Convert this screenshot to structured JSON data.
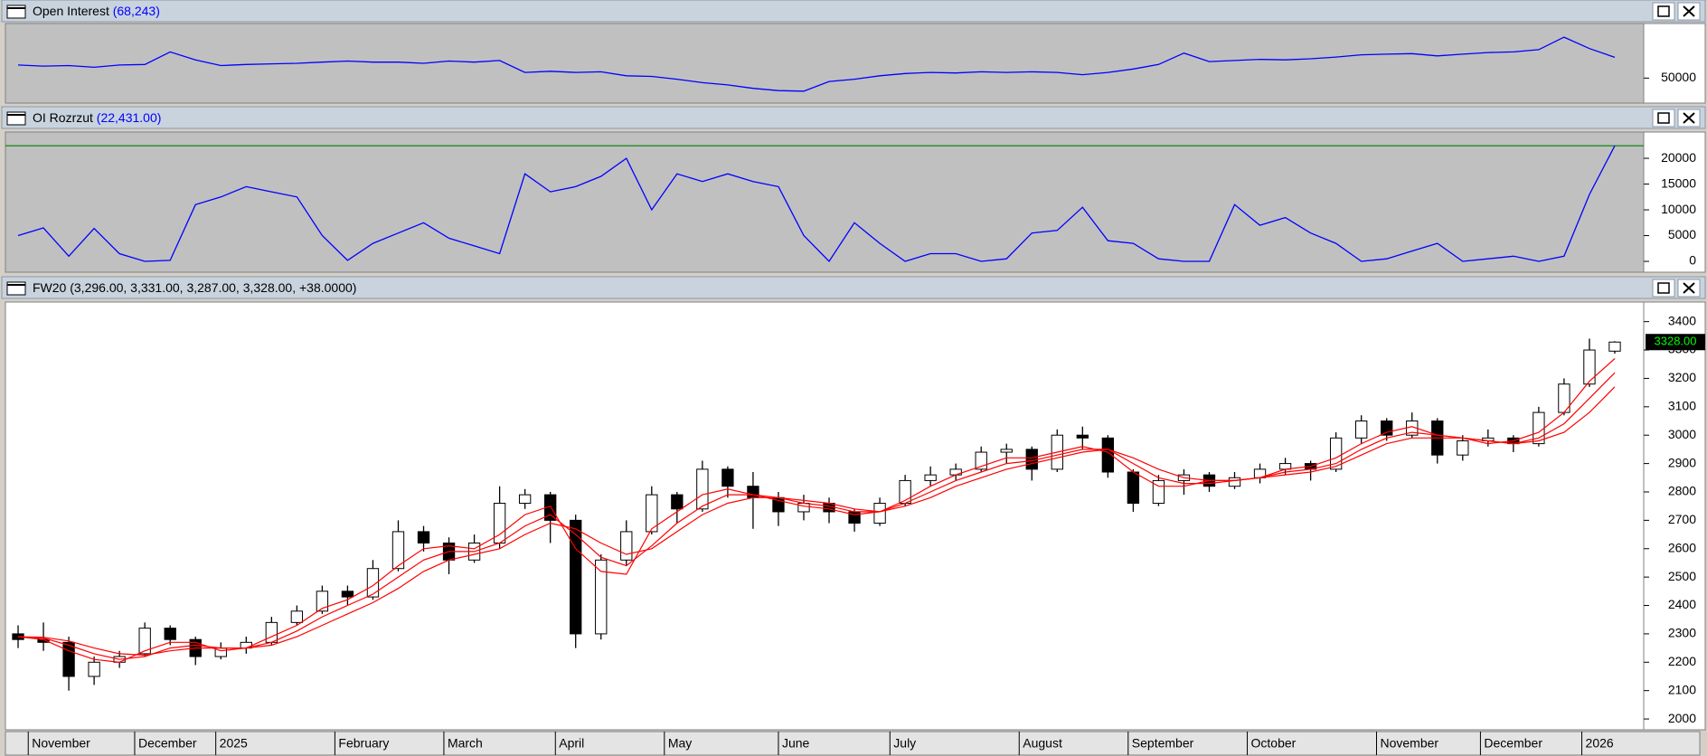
{
  "chart_data": [
    {
      "type": "line",
      "title": "Open Interest",
      "value_label": "(68,243)",
      "color": "#0000ff",
      "background": "#c0c0c0",
      "xlim": [
        0,
        64
      ],
      "ylim": [
        28000,
        98000
      ],
      "yticks": [
        50000
      ],
      "values": [
        61500,
        60500,
        61000,
        59500,
        61500,
        62000,
        73000,
        66000,
        61000,
        62000,
        62500,
        63000,
        64000,
        65000,
        64000,
        64000,
        63000,
        65000,
        64000,
        65500,
        55000,
        56000,
        55000,
        55500,
        52000,
        51500,
        49000,
        46000,
        44000,
        41000,
        39000,
        38500,
        47000,
        49000,
        52000,
        54000,
        55000,
        54500,
        55500,
        55000,
        55500,
        55000,
        53000,
        55000,
        58000,
        62000,
        72000,
        64500,
        65500,
        66500,
        66000,
        67000,
        68500,
        70500,
        71000,
        71500,
        69500,
        71000,
        72500,
        73000,
        75000,
        86000,
        76000,
        68243
      ]
    },
    {
      "type": "line",
      "title": "OI Rozrzut",
      "value_label": "(22,431.00)",
      "color": "#0000ff",
      "background": "#c0c0c0",
      "hline": {
        "value": 22431,
        "color": "#008000"
      },
      "xlim": [
        0,
        64
      ],
      "ylim": [
        -2100,
        25100
      ],
      "yticks": [
        0,
        5000,
        10000,
        15000,
        20000
      ],
      "values": [
        5000,
        6500,
        1000,
        6400,
        1500,
        0,
        200,
        11000,
        12500,
        14500,
        13500,
        12500,
        5000,
        200,
        3500,
        5500,
        7500,
        4500,
        3000,
        1500,
        17000,
        13500,
        14500,
        16500,
        20000,
        10000,
        17000,
        15500,
        17000,
        15500,
        14500,
        5000,
        0,
        7500,
        3500,
        0,
        1500,
        1500,
        0,
        500,
        5500,
        6000,
        10500,
        4000,
        3500,
        500,
        0,
        0,
        11000,
        7000,
        8500,
        5500,
        3500,
        0,
        500,
        2000,
        3500,
        0,
        500,
        1000,
        0,
        1000,
        13000,
        22431
      ]
    },
    {
      "type": "candlestick",
      "title": "FW20 (3,296.00, 3,331.00, 3,287.00, 3,328.00, +38.0000)",
      "background": "#ffffff",
      "up_color": "#ffffff",
      "down_color": "#000000",
      "last_value_label": "3328.00",
      "xlim": [
        0,
        64
      ],
      "xticks": [
        {
          "value": 0.9,
          "label": "November"
        },
        {
          "value": 5.1,
          "label": "December"
        },
        {
          "value": 8.3,
          "label": "2025"
        },
        {
          "value": 13.0,
          "label": "February"
        },
        {
          "value": 17.3,
          "label": "March"
        },
        {
          "value": 21.7,
          "label": "April"
        },
        {
          "value": 26.0,
          "label": "May"
        },
        {
          "value": 30.5,
          "label": "June"
        },
        {
          "value": 34.9,
          "label": "July"
        },
        {
          "value": 40.0,
          "label": "August"
        },
        {
          "value": 44.3,
          "label": "September"
        },
        {
          "value": 49.0,
          "label": "October"
        },
        {
          "value": 54.1,
          "label": "November"
        },
        {
          "value": 58.2,
          "label": "December"
        },
        {
          "value": 62.2,
          "label": "2026"
        }
      ],
      "ylim": [
        1962,
        3469
      ],
      "yticks": [
        2000,
        2100,
        2200,
        2300,
        2400,
        2500,
        2600,
        2700,
        2800,
        2900,
        3000,
        3100,
        3200,
        3300,
        3400
      ],
      "open": [
        2300,
        2280,
        2270,
        2150,
        2200,
        2230,
        2320,
        2280,
        2220,
        2250,
        2270,
        2340,
        2380,
        2450,
        2430,
        2530,
        2660,
        2620,
        2560,
        2620,
        2760,
        2790,
        2700,
        2300,
        2560,
        2660,
        2790,
        2740,
        2880,
        2820,
        2780,
        2730,
        2760,
        2730,
        2690,
        2760,
        2840,
        2860,
        2880,
        2940,
        2950,
        2880,
        3000,
        2990,
        2870,
        2760,
        2840,
        2860,
        2820,
        2850,
        2880,
        2900,
        2880,
        2990,
        3050,
        3000,
        3050,
        2930,
        2980,
        2990,
        2970,
        3080,
        3180,
        3296
      ],
      "high": [
        2330,
        2340,
        2290,
        2220,
        2240,
        2340,
        2330,
        2290,
        2270,
        2290,
        2360,
        2400,
        2470,
        2470,
        2560,
        2700,
        2680,
        2640,
        2650,
        2820,
        2810,
        2800,
        2720,
        2580,
        2700,
        2820,
        2800,
        2910,
        2890,
        2870,
        2800,
        2790,
        2780,
        2740,
        2780,
        2860,
        2890,
        2900,
        2960,
        2970,
        2960,
        3020,
        3030,
        3000,
        2880,
        2860,
        2880,
        2870,
        2870,
        2900,
        2920,
        2910,
        3010,
        3070,
        3060,
        3080,
        3060,
        3000,
        3020,
        3000,
        3100,
        3200,
        3340,
        3331
      ],
      "low": [
        2250,
        2240,
        2100,
        2120,
        2180,
        2220,
        2260,
        2190,
        2210,
        2230,
        2260,
        2330,
        2370,
        2400,
        2420,
        2520,
        2590,
        2510,
        2550,
        2600,
        2740,
        2620,
        2250,
        2280,
        2540,
        2650,
        2690,
        2730,
        2780,
        2670,
        2680,
        2700,
        2690,
        2660,
        2680,
        2750,
        2820,
        2840,
        2870,
        2900,
        2840,
        2870,
        2950,
        2850,
        2730,
        2750,
        2790,
        2800,
        2810,
        2830,
        2860,
        2840,
        2870,
        2970,
        2980,
        2990,
        2900,
        2910,
        2960,
        2940,
        2960,
        3070,
        3170,
        3287
      ],
      "close": [
        2280,
        2270,
        2150,
        2200,
        2220,
        2320,
        2280,
        2220,
        2250,
        2270,
        2340,
        2380,
        2450,
        2430,
        2530,
        2660,
        2620,
        2560,
        2620,
        2760,
        2790,
        2700,
        2300,
        2560,
        2660,
        2790,
        2740,
        2880,
        2820,
        2780,
        2730,
        2760,
        2730,
        2690,
        2760,
        2840,
        2860,
        2880,
        2940,
        2950,
        2880,
        3000,
        2990,
        2870,
        2760,
        2840,
        2860,
        2820,
        2850,
        2880,
        2900,
        2880,
        2990,
        3050,
        3000,
        3050,
        2930,
        2980,
        2990,
        2970,
        3080,
        3180,
        3300,
        3328
      ],
      "series": [
        {
          "color": "#ff0000",
          "values": [
            2290,
            2280,
            2240,
            2210,
            2200,
            2240,
            2270,
            2270,
            2240,
            2250,
            2290,
            2330,
            2390,
            2420,
            2470,
            2540,
            2600,
            2610,
            2600,
            2650,
            2720,
            2750,
            2600,
            2520,
            2510,
            2670,
            2730,
            2790,
            2810,
            2790,
            2770,
            2750,
            2740,
            2720,
            2730,
            2770,
            2820,
            2860,
            2890,
            2920,
            2920,
            2940,
            2960,
            2940,
            2870,
            2820,
            2820,
            2840,
            2840,
            2850,
            2880,
            2890,
            2920,
            2970,
            3010,
            3030,
            3000,
            2990,
            2970,
            2980,
            3010,
            3080,
            3190,
            3270
          ]
        },
        {
          "color": "#ff0000",
          "values": [
            2290,
            2285,
            2260,
            2230,
            2210,
            2220,
            2250,
            2260,
            2250,
            2250,
            2270,
            2310,
            2360,
            2400,
            2440,
            2500,
            2560,
            2590,
            2590,
            2620,
            2680,
            2720,
            2650,
            2570,
            2540,
            2610,
            2690,
            2750,
            2790,
            2790,
            2780,
            2760,
            2750,
            2730,
            2730,
            2760,
            2800,
            2840,
            2870,
            2900,
            2910,
            2930,
            2950,
            2950,
            2900,
            2850,
            2830,
            2830,
            2840,
            2850,
            2870,
            2880,
            2900,
            2950,
            2990,
            3010,
            3000,
            2990,
            2980,
            2970,
            2990,
            3040,
            3130,
            3220
          ]
        },
        {
          "color": "#ff0000",
          "values": [
            2290,
            2288,
            2275,
            2250,
            2230,
            2225,
            2240,
            2250,
            2250,
            2250,
            2260,
            2290,
            2330,
            2370,
            2410,
            2460,
            2520,
            2560,
            2580,
            2600,
            2650,
            2690,
            2670,
            2620,
            2580,
            2600,
            2660,
            2720,
            2760,
            2780,
            2780,
            2770,
            2760,
            2740,
            2730,
            2750,
            2780,
            2820,
            2850,
            2880,
            2900,
            2920,
            2940,
            2950,
            2920,
            2880,
            2850,
            2840,
            2840,
            2850,
            2860,
            2870,
            2890,
            2930,
            2970,
            2990,
            2990,
            2990,
            2980,
            2970,
            2980,
            3010,
            3080,
            3170
          ]
        }
      ]
    }
  ]
}
